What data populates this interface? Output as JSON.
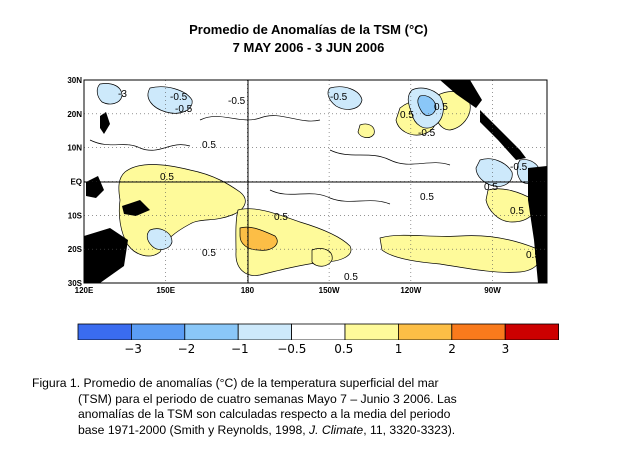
{
  "title_line1": "Promedio de Anomalías de la TSM (°C)",
  "title_line2": "7 MAY 2006 - 3 JUN 2006",
  "chart_data": {
    "type": "heatmap",
    "title": "Promedio de Anomalías de la TSM (°C)",
    "subtitle": "7 MAY 2006 - 3 JUN 2006",
    "x_ticks": [
      "120E",
      "150E",
      "180",
      "150W",
      "120W",
      "90W"
    ],
    "x_tick_values": [
      120,
      150,
      180,
      210,
      240,
      270
    ],
    "xlim": [
      120,
      290
    ],
    "y_ticks": [
      "30N",
      "20N",
      "10N",
      "EQ",
      "10S",
      "20S",
      "30S"
    ],
    "y_tick_values": [
      30,
      20,
      10,
      0,
      -10,
      -20,
      -30
    ],
    "ylim": [
      -30,
      30
    ],
    "grid": true,
    "contour_labels": [
      "-3",
      "-0.5",
      "-0.5",
      "-0.5",
      "0.5",
      "0.5",
      "0.5",
      "0.5",
      "-0.5",
      "-0.5",
      "0.5",
      "0.5",
      "0.5",
      "0.5",
      "0.5",
      "-0.5",
      "0.5",
      "0.5"
    ],
    "colorbar": {
      "boundaries": [
        "−3",
        "−2",
        "−1",
        "−0.5",
        "0.5",
        "1",
        "2",
        "3"
      ],
      "colors": [
        "#3a6cf0",
        "#5b9df5",
        "#8ac7f8",
        "#cde9fb",
        "#ffffff",
        "#fefa9a",
        "#fcbe46",
        "#f97a1c",
        "#cc0000"
      ]
    },
    "anomaly_regions": [
      {
        "label": "0.5",
        "lon": 140,
        "lat": -3,
        "level": 0.5
      },
      {
        "label": "0.5",
        "lon": 185,
        "lat": -20,
        "level": 1.0
      },
      {
        "label": "0.5",
        "lon": 240,
        "lat": 20,
        "level": 0.5
      },
      {
        "label": "-0.5",
        "lon": 235,
        "lat": 25,
        "level": -1.0
      },
      {
        "label": "-0.5",
        "lon": 278,
        "lat": -1,
        "level": -0.5
      },
      {
        "label": "0.5",
        "lon": 280,
        "lat": -15,
        "level": 0.5
      }
    ]
  },
  "caption": {
    "line1": "Figura 1. Promedio de anomalías (°C)   de la temperatura   superficial  del mar",
    "line2": "(TSM)  para el periodo de cuatro semanas  Mayo 7 – Junio 3 2006.  Las",
    "line3": "anomalías de la TSM son calculadas respecto a  la media del periodo",
    "line4_pre": "base 1971-2000 (Smith y Reynolds, 1998, ",
    "line4_italic": "J. Climate",
    "line4_post": ", 11, 3320-3323)."
  }
}
